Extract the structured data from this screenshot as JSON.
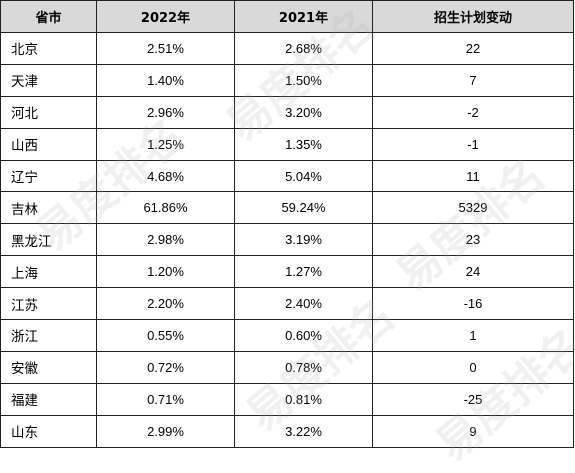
{
  "table": {
    "headers": [
      "省市",
      "2022年",
      "2021年",
      "招生计划变动"
    ],
    "rows": [
      {
        "province": "北京",
        "y2022": "2.51%",
        "y2021": "2.68%",
        "change": "22"
      },
      {
        "province": "天津",
        "y2022": "1.40%",
        "y2021": "1.50%",
        "change": "7"
      },
      {
        "province": "河北",
        "y2022": "2.96%",
        "y2021": "3.20%",
        "change": "-2"
      },
      {
        "province": "山西",
        "y2022": "1.25%",
        "y2021": "1.35%",
        "change": "-1"
      },
      {
        "province": "辽宁",
        "y2022": "4.68%",
        "y2021": "5.04%",
        "change": "11"
      },
      {
        "province": "吉林",
        "y2022": "61.86%",
        "y2021": "59.24%",
        "change": "5329"
      },
      {
        "province": "黑龙江",
        "y2022": "2.98%",
        "y2021": "3.19%",
        "change": "23"
      },
      {
        "province": "上海",
        "y2022": "1.20%",
        "y2021": "1.27%",
        "change": "24"
      },
      {
        "province": "江苏",
        "y2022": "2.20%",
        "y2021": "2.40%",
        "change": "-16"
      },
      {
        "province": "浙江",
        "y2022": "0.55%",
        "y2021": "0.60%",
        "change": "1"
      },
      {
        "province": "安徽",
        "y2022": "0.72%",
        "y2021": "0.78%",
        "change": "0"
      },
      {
        "province": "福建",
        "y2022": "0.71%",
        "y2021": "0.81%",
        "change": "-25"
      },
      {
        "province": "山东",
        "y2022": "2.99%",
        "y2021": "3.22%",
        "change": "9"
      }
    ]
  },
  "watermark": {
    "text": "易度排名",
    "color": "#aaaaaa"
  },
  "colors": {
    "header_bg": "#d9d9d9",
    "border": "#222222"
  }
}
